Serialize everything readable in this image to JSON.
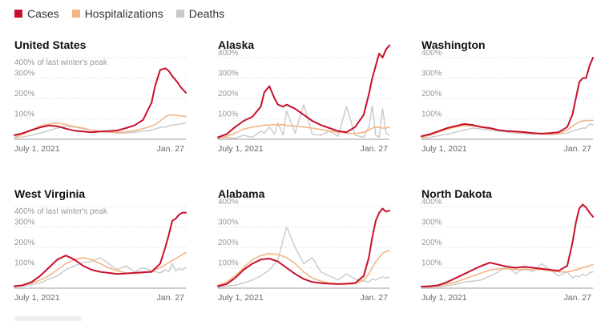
{
  "legend": [
    {
      "key": "cases",
      "label": "Cases",
      "color": "#c8102e"
    },
    {
      "key": "hospitalizations",
      "label": "Hospitalizations",
      "color": "#f4b684"
    },
    {
      "key": "deaths",
      "label": "Deaths",
      "color": "#c9c9c9"
    }
  ],
  "chart_data": [
    {
      "type": "line",
      "title": "United States",
      "subtitle": "400% of last winter's peak",
      "ylim": [
        0,
        400
      ],
      "yticks": [
        100,
        200,
        300,
        400
      ],
      "ytick_labels": [
        "100%",
        "200%",
        "300%",
        ""
      ],
      "x_start_label": "July 1, 2021",
      "x_end_label": "Jan. 27",
      "x": [
        0,
        5,
        10,
        15,
        20,
        25,
        30,
        35,
        40,
        45,
        50,
        55,
        60,
        65,
        70,
        75,
        80,
        82,
        85,
        88,
        90,
        92,
        95,
        97,
        100
      ],
      "series": [
        {
          "name": "Cases",
          "values": [
            20,
            30,
            45,
            58,
            68,
            64,
            52,
            42,
            38,
            34,
            38,
            40,
            43,
            55,
            68,
            95,
            180,
            260,
            340,
            348,
            335,
            310,
            280,
            255,
            228
          ]
        },
        {
          "name": "Hospitalizations",
          "values": [
            10,
            25,
            45,
            65,
            75,
            80,
            72,
            62,
            55,
            45,
            40,
            36,
            34,
            36,
            42,
            52,
            65,
            72,
            90,
            110,
            118,
            120,
            118,
            115,
            112
          ]
        },
        {
          "name": "Deaths",
          "values": [
            8,
            12,
            20,
            30,
            42,
            55,
            62,
            60,
            52,
            45,
            38,
            34,
            30,
            30,
            34,
            40,
            45,
            50,
            58,
            60,
            65,
            70,
            72,
            75,
            80
          ]
        }
      ]
    },
    {
      "type": "line",
      "title": "Alaska",
      "subtitle": "",
      "ylim": [
        0,
        400
      ],
      "yticks": [
        100,
        200,
        300,
        400
      ],
      "ytick_labels": [
        "100%",
        "200%",
        "300%",
        "400%"
      ],
      "x_start_label": "July 1, 2021",
      "x_end_label": "Jan. 27",
      "x": [
        0,
        5,
        10,
        15,
        20,
        25,
        27,
        30,
        33,
        35,
        38,
        40,
        45,
        50,
        55,
        60,
        65,
        70,
        75,
        80,
        85,
        88,
        90,
        92,
        94,
        96,
        98,
        100
      ],
      "series": [
        {
          "name": "Cases",
          "values": [
            10,
            25,
            60,
            90,
            110,
            160,
            230,
            260,
            200,
            170,
            160,
            170,
            150,
            120,
            90,
            70,
            55,
            40,
            35,
            60,
            120,
            220,
            300,
            360,
            420,
            400,
            440,
            460
          ]
        },
        {
          "name": "Hospitalizations",
          "values": [
            5,
            15,
            30,
            50,
            60,
            65,
            70,
            70,
            72,
            70,
            72,
            68,
            65,
            60,
            55,
            48,
            40,
            35,
            30,
            28,
            35,
            45,
            55,
            60,
            58,
            55,
            55,
            60
          ]
        },
        {
          "name": "Deaths",
          "values": [
            5,
            10,
            5,
            20,
            10,
            40,
            30,
            60,
            25,
            80,
            20,
            140,
            30,
            170,
            25,
            20,
            40,
            15,
            160,
            20,
            10,
            60,
            165,
            20,
            10,
            150,
            30,
            20
          ]
        }
      ]
    },
    {
      "type": "line",
      "title": "Washington",
      "subtitle": "",
      "ylim": [
        0,
        400
      ],
      "yticks": [
        100,
        200,
        300,
        400
      ],
      "ytick_labels": [
        "100%",
        "200%",
        "300%",
        "400%"
      ],
      "x_start_label": "July 1, 2021",
      "x_end_label": "Jan. 27",
      "x": [
        0,
        5,
        10,
        15,
        20,
        25,
        30,
        35,
        40,
        45,
        50,
        55,
        60,
        65,
        70,
        75,
        80,
        85,
        88,
        90,
        92,
        94,
        96,
        98,
        100
      ],
      "series": [
        {
          "name": "Cases",
          "values": [
            15,
            25,
            40,
            55,
            65,
            75,
            70,
            60,
            55,
            45,
            40,
            38,
            35,
            30,
            28,
            30,
            35,
            60,
            120,
            200,
            280,
            300,
            300,
            360,
            400
          ]
        },
        {
          "name": "Hospitalizations",
          "values": [
            10,
            20,
            35,
            50,
            60,
            68,
            65,
            58,
            52,
            45,
            40,
            36,
            32,
            28,
            26,
            25,
            28,
            45,
            65,
            75,
            85,
            90,
            92,
            92,
            92
          ]
        },
        {
          "name": "Deaths",
          "values": [
            5,
            10,
            18,
            25,
            35,
            45,
            55,
            50,
            45,
            40,
            35,
            30,
            28,
            25,
            25,
            22,
            25,
            30,
            40,
            45,
            50,
            55,
            55,
            75,
            70
          ]
        }
      ]
    },
    {
      "type": "line",
      "title": "West Virginia",
      "subtitle": "400% of last winter's peak",
      "ylim": [
        0,
        400
      ],
      "yticks": [
        100,
        200,
        300,
        400
      ],
      "ytick_labels": [
        "100%",
        "200%",
        "300%",
        ""
      ],
      "x_start_label": "July 1, 2021",
      "x_end_label": "Jan. 27",
      "x": [
        0,
        5,
        10,
        15,
        20,
        25,
        30,
        35,
        40,
        45,
        50,
        55,
        60,
        65,
        70,
        75,
        80,
        85,
        88,
        90,
        92,
        94,
        96,
        98,
        100
      ],
      "series": [
        {
          "name": "Cases",
          "values": [
            10,
            15,
            30,
            60,
            100,
            140,
            160,
            140,
            110,
            90,
            80,
            75,
            70,
            72,
            75,
            78,
            80,
            120,
            200,
            260,
            330,
            340,
            360,
            370,
            370
          ]
        },
        {
          "name": "Hospitalizations",
          "values": [
            10,
            15,
            25,
            40,
            60,
            90,
            120,
            140,
            150,
            140,
            120,
            100,
            85,
            75,
            72,
            75,
            85,
            100,
            115,
            125,
            135,
            145,
            155,
            165,
            175
          ]
        },
        {
          "name": "Deaths",
          "values": [
            5,
            10,
            18,
            25,
            45,
            60,
            90,
            110,
            125,
            130,
            150,
            120,
            90,
            110,
            80,
            100,
            85,
            75,
            90,
            80,
            120,
            85,
            95,
            90,
            100
          ]
        }
      ]
    },
    {
      "type": "line",
      "title": "Alabama",
      "subtitle": "",
      "ylim": [
        0,
        400
      ],
      "yticks": [
        100,
        200,
        300,
        400
      ],
      "ytick_labels": [
        "100%",
        "200%",
        "300%",
        "400%"
      ],
      "x_start_label": "July 1, 2021",
      "x_end_label": "Jan. 27",
      "x": [
        0,
        5,
        10,
        15,
        20,
        25,
        30,
        35,
        40,
        45,
        50,
        55,
        60,
        65,
        70,
        75,
        80,
        85,
        88,
        90,
        92,
        94,
        96,
        98,
        100
      ],
      "series": [
        {
          "name": "Cases",
          "values": [
            10,
            20,
            50,
            90,
            120,
            140,
            145,
            130,
            100,
            70,
            45,
            30,
            25,
            22,
            20,
            22,
            25,
            60,
            150,
            250,
            330,
            370,
            390,
            375,
            380
          ]
        },
        {
          "name": "Hospitalizations",
          "values": [
            15,
            30,
            60,
            100,
            140,
            160,
            170,
            165,
            150,
            120,
            80,
            50,
            35,
            25,
            20,
            20,
            22,
            40,
            70,
            100,
            130,
            150,
            170,
            180,
            185
          ]
        },
        {
          "name": "Deaths",
          "values": [
            5,
            10,
            15,
            25,
            40,
            60,
            90,
            140,
            300,
            200,
            120,
            150,
            80,
            60,
            40,
            70,
            45,
            35,
            30,
            45,
            40,
            50,
            55,
            50,
            55
          ]
        }
      ]
    },
    {
      "type": "line",
      "title": "North Dakota",
      "subtitle": "",
      "ylim": [
        0,
        400
      ],
      "yticks": [
        100,
        200,
        300,
        400
      ],
      "ytick_labels": [
        "100%",
        "200%",
        "300%",
        "400%"
      ],
      "x_start_label": "July 1, 2021",
      "x_end_label": "Jan. 27",
      "x": [
        0,
        5,
        10,
        15,
        20,
        25,
        30,
        35,
        40,
        45,
        50,
        55,
        60,
        65,
        70,
        75,
        80,
        85,
        88,
        90,
        92,
        94,
        96,
        98,
        100
      ],
      "series": [
        {
          "name": "Cases",
          "values": [
            8,
            10,
            15,
            30,
            50,
            70,
            90,
            110,
            125,
            115,
            105,
            100,
            105,
            100,
            95,
            90,
            85,
            110,
            220,
            320,
            390,
            410,
            395,
            370,
            350
          ]
        },
        {
          "name": "Hospitalizations",
          "values": [
            5,
            8,
            12,
            20,
            30,
            45,
            60,
            75,
            90,
            95,
            95,
            92,
            90,
            92,
            90,
            85,
            80,
            80,
            85,
            90,
            95,
            100,
            105,
            110,
            115
          ]
        },
        {
          "name": "Deaths",
          "values": [
            3,
            5,
            8,
            12,
            20,
            30,
            35,
            40,
            60,
            80,
            110,
            70,
            100,
            80,
            120,
            90,
            60,
            80,
            50,
            60,
            55,
            70,
            60,
            75,
            80
          ]
        }
      ]
    }
  ]
}
